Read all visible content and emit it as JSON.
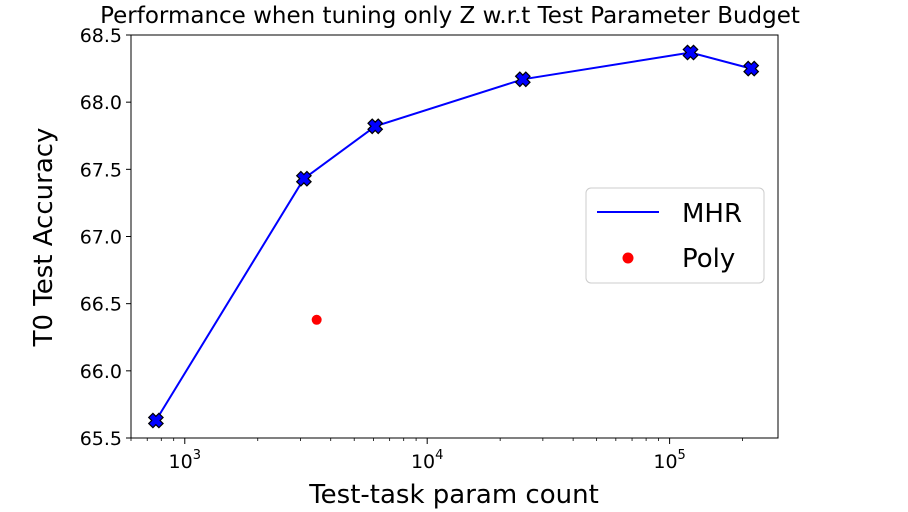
{
  "chart_data": {
    "type": "line",
    "title": "Performance when tuning only Z w.r.t Test Parameter Budget",
    "xlabel": "Test-task param count",
    "ylabel": "T0 Test Accuracy",
    "xscale": "log",
    "xlim": [
      600,
      280000
    ],
    "ylim": [
      65.5,
      68.5
    ],
    "y_ticks": [
      65.5,
      66.0,
      66.5,
      67.0,
      67.5,
      68.0,
      68.5
    ],
    "y_tick_labels": [
      "65.5",
      "66.0",
      "66.5",
      "67.0",
      "67.5",
      "68.0",
      "68.5"
    ],
    "x_ticks": [
      1000,
      10000,
      100000
    ],
    "x_tick_labels": [
      {
        "base": "10",
        "exp": "3"
      },
      {
        "base": "10",
        "exp": "4"
      },
      {
        "base": "10",
        "exp": "5"
      }
    ],
    "legend_position": "center-right",
    "series": [
      {
        "name": "MHR",
        "color": "#0000ff",
        "style": "line-with-x-markers",
        "x": [
          760,
          3100,
          6100,
          24800,
          122000,
          217000
        ],
        "y": [
          65.63,
          67.43,
          67.82,
          68.17,
          68.37,
          68.25
        ]
      },
      {
        "name": "Poly",
        "color": "#ff0000",
        "style": "points",
        "x": [
          3500
        ],
        "y": [
          66.38
        ]
      }
    ]
  }
}
